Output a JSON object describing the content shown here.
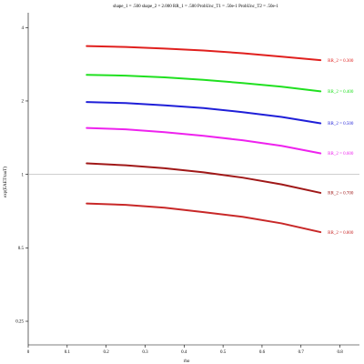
{
  "chart_data": {
    "type": "line",
    "title": "shape_1 = .500  shape_2 = 2.000  RR_1 = .500  ProbUnc_T1 = .50e-1  ProbUnc_T2 = .50e-1",
    "xlabel": "rho",
    "ylabel": "exp(EAET/tauT)",
    "xlim": [
      0,
      0.85
    ],
    "ylim": [
      0.2,
      4.6
    ],
    "y_scale": "log",
    "reference_line_y": 1,
    "x_ticks": [
      {
        "value": 0,
        "label": "0"
      },
      {
        "value": 0.1,
        "label": "0.1"
      },
      {
        "value": 0.2,
        "label": "0.2"
      },
      {
        "value": 0.3,
        "label": "0.3"
      },
      {
        "value": 0.4,
        "label": "0.4"
      },
      {
        "value": 0.5,
        "label": "0.5"
      },
      {
        "value": 0.6,
        "label": "0.6"
      },
      {
        "value": 0.7,
        "label": "0.7"
      },
      {
        "value": 0.8,
        "label": "0.8"
      }
    ],
    "y_ticks": [
      {
        "value": 4,
        "label": "4"
      },
      {
        "value": 2,
        "label": "2"
      },
      {
        "value": 1,
        "label": "1"
      },
      {
        "value": 0.5,
        "label": "0.5"
      },
      {
        "value": 0.25,
        "label": "0.25"
      }
    ],
    "x": [
      0.15,
      0.25,
      0.35,
      0.45,
      0.55,
      0.65,
      0.75
    ],
    "series": [
      {
        "name": "RR_2 = 0.300",
        "color": "#e0201e",
        "values": [
          3.36,
          3.33,
          3.28,
          3.22,
          3.14,
          3.04,
          2.94
        ]
      },
      {
        "name": "RR_2 = 0.400",
        "color": "#20e020",
        "values": [
          2.56,
          2.54,
          2.5,
          2.44,
          2.37,
          2.29,
          2.19
        ]
      },
      {
        "name": "RR_2 = 0.500",
        "color": "#1f1fd8",
        "values": [
          1.98,
          1.96,
          1.92,
          1.87,
          1.8,
          1.72,
          1.62
        ]
      },
      {
        "name": "RR_2 = 0.600",
        "color": "#ee22ee",
        "values": [
          1.55,
          1.53,
          1.49,
          1.44,
          1.38,
          1.31,
          1.22
        ]
      },
      {
        "name": "RR_2 = 0.700",
        "color": "#a01818",
        "values": [
          1.11,
          1.09,
          1.06,
          1.02,
          0.97,
          0.91,
          0.84
        ]
      },
      {
        "name": "RR_2 = 0.800",
        "color": "#c82828",
        "values": [
          0.76,
          0.75,
          0.73,
          0.7,
          0.67,
          0.63,
          0.58
        ]
      }
    ]
  }
}
